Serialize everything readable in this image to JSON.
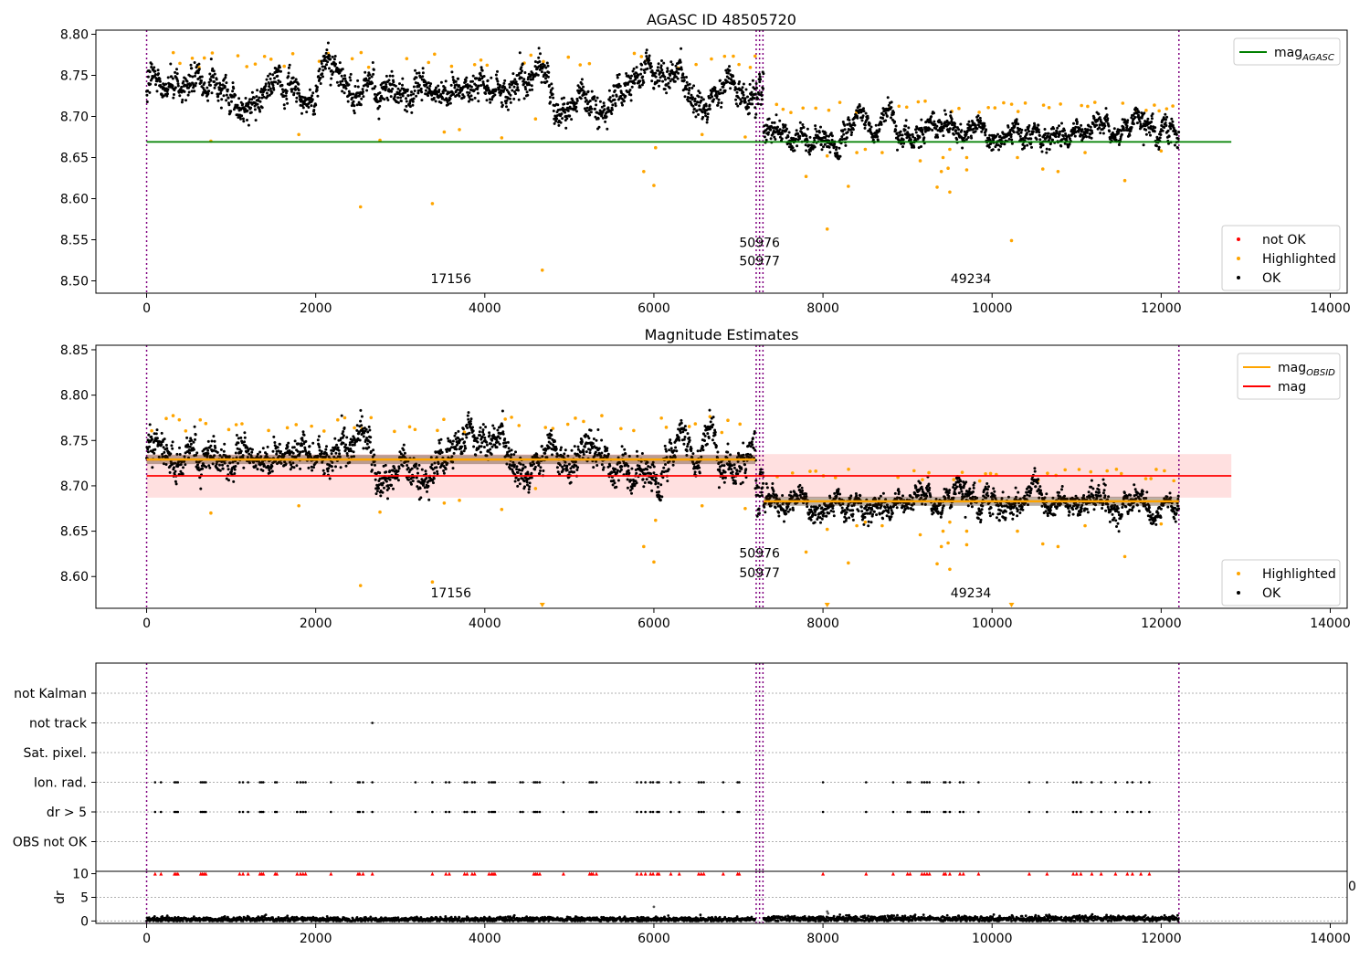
{
  "chart_data": [
    {
      "type": "scatter",
      "title": "AGASC ID 48505720",
      "xlim": [
        -600,
        14200
      ],
      "ylim": [
        8.485,
        8.805
      ],
      "xticks": [
        0,
        2000,
        4000,
        6000,
        8000,
        10000,
        12000,
        14000
      ],
      "xtick_labels": [
        "0",
        "2000",
        "4000",
        "6000",
        "8000",
        "10000",
        "12000",
        "14000"
      ],
      "yticks": [
        8.5,
        8.55,
        8.6,
        8.65,
        8.7,
        8.75,
        8.8
      ],
      "ytick_labels": [
        "8.50",
        "8.55",
        "8.60",
        "8.65",
        "8.70",
        "8.75",
        "8.80"
      ],
      "vlines": [
        0,
        7210,
        7250,
        7290,
        12210
      ],
      "segments": [
        {
          "x0": 0,
          "x1": 7200,
          "mean": 8.73,
          "spread": 0.012
        },
        {
          "x0": 7200,
          "x1": 7300,
          "mean": 8.705,
          "spread": 0.02
        },
        {
          "x0": 7300,
          "x1": 12210,
          "mean": 8.683,
          "spread": 0.009
        }
      ],
      "hline": {
        "name": "mag_AGASC",
        "value": 8.669,
        "color": "#008000",
        "x0": 0,
        "x1": 12830
      },
      "highlighted_points": [
        [
          760,
          8.67
        ],
        [
          1800,
          8.678
        ],
        [
          2530,
          8.59
        ],
        [
          2760,
          8.671
        ],
        [
          3380,
          8.594
        ],
        [
          3520,
          8.681
        ],
        [
          3700,
          8.684
        ],
        [
          4200,
          8.674
        ],
        [
          4680,
          8.513
        ],
        [
          4600,
          8.697
        ],
        [
          5880,
          8.633
        ],
        [
          6000,
          8.616
        ],
        [
          6020,
          8.662
        ],
        [
          6570,
          8.678
        ],
        [
          7080,
          8.675
        ],
        [
          7800,
          8.627
        ],
        [
          8050,
          8.563
        ],
        [
          8050,
          8.652
        ],
        [
          8300,
          8.615
        ],
        [
          8400,
          8.656
        ],
        [
          8500,
          8.66
        ],
        [
          8700,
          8.656
        ],
        [
          9150,
          8.646
        ],
        [
          9350,
          8.614
        ],
        [
          9400,
          8.633
        ],
        [
          9420,
          8.65
        ],
        [
          9480,
          8.637
        ],
        [
          9500,
          8.608
        ],
        [
          9500,
          8.66
        ],
        [
          9700,
          8.65
        ],
        [
          9700,
          8.635
        ],
        [
          10230,
          8.549
        ],
        [
          10300,
          8.65
        ],
        [
          10600,
          8.636
        ],
        [
          10780,
          8.633
        ],
        [
          11100,
          8.656
        ],
        [
          11570,
          8.622
        ],
        [
          12000,
          8.658
        ]
      ],
      "obsid_labels": [
        {
          "text": "17156",
          "x": 3600,
          "y": 8.497
        },
        {
          "text": "50976",
          "x": 7250,
          "y": 8.541
        },
        {
          "text": "50977",
          "x": 7250,
          "y": 8.519
        },
        {
          "text": "49234",
          "x": 9750,
          "y": 8.497
        }
      ],
      "legends": [
        {
          "loc": "upper right",
          "entries": [
            {
              "label": "mag",
              "sub": "AGASC",
              "kind": "line",
              "color": "#008000"
            }
          ]
        },
        {
          "loc": "lower right",
          "entries": [
            {
              "label": "not OK",
              "kind": "dot",
              "color": "#ff0000"
            },
            {
              "label": "Highlighted",
              "kind": "dot",
              "color": "#ffa500"
            },
            {
              "label": "OK",
              "kind": "dot",
              "color": "#000000"
            }
          ]
        }
      ]
    },
    {
      "type": "scatter",
      "title": "Magnitude Estimates",
      "xlim": [
        -600,
        14200
      ],
      "ylim": [
        8.565,
        8.855
      ],
      "xticks": [
        0,
        2000,
        4000,
        6000,
        8000,
        10000,
        12000,
        14000
      ],
      "xtick_labels": [
        "0",
        "2000",
        "4000",
        "6000",
        "8000",
        "10000",
        "12000",
        "14000"
      ],
      "yticks": [
        8.6,
        8.65,
        8.7,
        8.75,
        8.8,
        8.85
      ],
      "ytick_labels": [
        "8.60",
        "8.65",
        "8.70",
        "8.75",
        "8.80",
        "8.85"
      ],
      "vlines": [
        0,
        7210,
        7250,
        7290,
        12210
      ],
      "segments": [
        {
          "x0": 0,
          "x1": 7200,
          "mean": 8.73,
          "spread": 0.012
        },
        {
          "x0": 7200,
          "x1": 7300,
          "mean": 8.705,
          "spread": 0.02
        },
        {
          "x0": 7300,
          "x1": 12210,
          "mean": 8.683,
          "spread": 0.009
        }
      ],
      "mag_line": {
        "name": "mag",
        "value": 8.711,
        "band": [
          8.687,
          8.735
        ],
        "color": "#ff0000",
        "x0": 0,
        "x1": 12830
      },
      "obsid_mag": [
        {
          "x0": 0,
          "x1": 7200,
          "value": 8.729
        },
        {
          "x0": 7300,
          "x1": 12210,
          "value": 8.683
        }
      ],
      "highlighted_points": [
        [
          760,
          8.67
        ],
        [
          1800,
          8.678
        ],
        [
          2530,
          8.59
        ],
        [
          2760,
          8.671
        ],
        [
          3380,
          8.594
        ],
        [
          3520,
          8.681
        ],
        [
          3700,
          8.684
        ],
        [
          4200,
          8.674
        ],
        [
          4600,
          8.697
        ],
        [
          5880,
          8.633
        ],
        [
          6000,
          8.616
        ],
        [
          6020,
          8.662
        ],
        [
          6570,
          8.678
        ],
        [
          7080,
          8.675
        ],
        [
          7800,
          8.627
        ],
        [
          8050,
          8.652
        ],
        [
          8300,
          8.615
        ],
        [
          8400,
          8.656
        ],
        [
          8500,
          8.66
        ],
        [
          8700,
          8.656
        ],
        [
          9150,
          8.646
        ],
        [
          9350,
          8.614
        ],
        [
          9400,
          8.633
        ],
        [
          9420,
          8.65
        ],
        [
          9480,
          8.637
        ],
        [
          9500,
          8.608
        ],
        [
          9500,
          8.66
        ],
        [
          9700,
          8.65
        ],
        [
          9700,
          8.635
        ],
        [
          10300,
          8.65
        ],
        [
          10600,
          8.636
        ],
        [
          10780,
          8.633
        ],
        [
          11100,
          8.656
        ],
        [
          11570,
          8.622
        ],
        [
          12000,
          8.658
        ]
      ],
      "offscale_markers": [
        4680,
        8050,
        10230
      ],
      "obsid_labels": [
        {
          "text": "17156",
          "x": 3600,
          "y": 8.577
        },
        {
          "text": "50976",
          "x": 7250,
          "y": 8.621
        },
        {
          "text": "50977",
          "x": 7250,
          "y": 8.599
        },
        {
          "text": "49234",
          "x": 9750,
          "y": 8.577
        }
      ],
      "legends": [
        {
          "loc": "upper right",
          "entries": [
            {
              "label": "mag",
              "sub": "OBSID",
              "kind": "line",
              "color": "#ffa500"
            },
            {
              "label": "mag",
              "kind": "line",
              "color": "#ff0000"
            }
          ]
        },
        {
          "loc": "lower right",
          "entries": [
            {
              "label": "Highlighted",
              "kind": "dot",
              "color": "#ffa500"
            },
            {
              "label": "OK",
              "kind": "dot",
              "color": "#000000"
            }
          ]
        }
      ]
    },
    {
      "type": "scatter",
      "title": "",
      "xlim": [
        -600,
        14200
      ],
      "flag_labels": [
        "not Kalman",
        "not track",
        "Sat. pixel.",
        "Ion. rad.",
        "dr > 5",
        "OBS not OK"
      ],
      "vlines": [
        0,
        7210,
        7250,
        7290,
        12210
      ],
      "flag_events": {
        "not track": [
          2670
        ],
        "Ion. rad.": [
          100,
          170,
          330,
          350,
          370,
          640,
          660,
          680,
          700,
          1100,
          1140,
          1200,
          1340,
          1360,
          1380,
          1520,
          1540,
          1780,
          1820,
          1850,
          1880,
          2180,
          2500,
          2520,
          2560,
          2670,
          3180,
          3380,
          3540,
          3580,
          3760,
          3790,
          3850,
          3880,
          4050,
          4080,
          4100,
          4120,
          4420,
          4450,
          4580,
          4600,
          4620,
          4650,
          4930,
          5240,
          5260,
          5280,
          5320,
          5800,
          5850,
          5900,
          5960,
          5990,
          6040,
          6060,
          6200,
          6300,
          6530,
          6560,
          6590,
          6820,
          6990,
          7010,
          8000,
          8510,
          8830,
          9000,
          9030,
          9170,
          9200,
          9230,
          9260,
          9430,
          9450,
          9500,
          9620,
          9660,
          9840,
          10440,
          10650,
          10960,
          11000,
          11050,
          11180,
          11290,
          11460,
          11600,
          11660,
          11760,
          11860
        ],
        "dr > 5": [
          100,
          170,
          330,
          350,
          370,
          640,
          660,
          680,
          700,
          1100,
          1140,
          1200,
          1340,
          1360,
          1380,
          1520,
          1540,
          1780,
          1820,
          1850,
          1880,
          2180,
          2500,
          2520,
          2560,
          2670,
          3180,
          3380,
          3540,
          3580,
          3760,
          3790,
          3850,
          3880,
          4050,
          4080,
          4100,
          4120,
          4420,
          4450,
          4580,
          4600,
          4620,
          4650,
          4930,
          5240,
          5260,
          5280,
          5320,
          5800,
          5850,
          5900,
          5960,
          5990,
          6040,
          6060,
          6200,
          6300,
          6530,
          6560,
          6590,
          6820,
          6990,
          7010,
          8000,
          8510,
          8830,
          9000,
          9030,
          9170,
          9200,
          9230,
          9260,
          9430,
          9450,
          9500,
          9620,
          9660,
          9840,
          10440,
          10650,
          10960,
          11000,
          11050,
          11180,
          11290,
          11460,
          11600,
          11660,
          11760,
          11860
        ]
      }
    },
    {
      "type": "scatter",
      "title": "",
      "xlim": [
        -600,
        14200
      ],
      "ylim": [
        -0.5,
        10.5
      ],
      "ylabel": "dr",
      "xticks": [
        0,
        2000,
        4000,
        6000,
        8000,
        10000,
        12000,
        14000
      ],
      "xtick_labels": [
        "0",
        "2000",
        "4000",
        "6000",
        "8000",
        "10000",
        "12000",
        "14000"
      ],
      "yticks": [
        0,
        5,
        10
      ],
      "ytick_labels": [
        "0",
        "5",
        "10"
      ],
      "vlines": [
        0,
        7210,
        7250,
        7290,
        12210
      ],
      "dr_segments": [
        {
          "x0": 0,
          "x1": 7200,
          "mean": 0.35,
          "spread": 0.25
        },
        {
          "x0": 7300,
          "x1": 12210,
          "mean": 0.5,
          "spread": 0.3
        }
      ],
      "dr_outliers": [
        [
          6000,
          3.0
        ],
        [
          8050,
          2.0
        ],
        [
          8060,
          1.6
        ]
      ],
      "clipped_markers": [
        100,
        170,
        330,
        350,
        370,
        640,
        660,
        680,
        700,
        1100,
        1140,
        1200,
        1340,
        1360,
        1380,
        1520,
        1540,
        1780,
        1820,
        1850,
        1880,
        2180,
        2500,
        2520,
        2560,
        2670,
        3380,
        3540,
        3580,
        3760,
        3790,
        3850,
        3880,
        4050,
        4080,
        4100,
        4120,
        4580,
        4600,
        4620,
        4650,
        4930,
        5240,
        5260,
        5280,
        5320,
        5800,
        5850,
        5900,
        5960,
        5990,
        6040,
        6060,
        6200,
        6300,
        6530,
        6560,
        6590,
        6820,
        6990,
        7010,
        8000,
        8510,
        8830,
        9000,
        9030,
        9170,
        9200,
        9230,
        9260,
        9430,
        9450,
        9500,
        9620,
        9660,
        9840,
        10440,
        10650,
        10960,
        11000,
        11050,
        11180,
        11290,
        11460,
        11600,
        11660,
        11760,
        11860
      ],
      "stray_tick_text": "0"
    }
  ]
}
